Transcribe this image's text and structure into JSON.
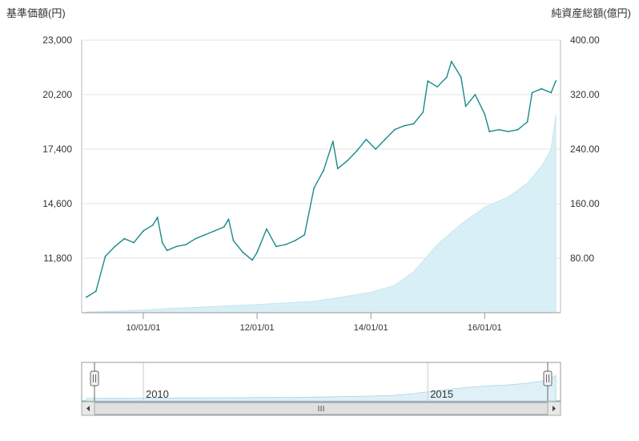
{
  "chart_data": {
    "type": "line",
    "left_axis_title": "基準価額(円)",
    "right_axis_title": "純資産総額(億円)",
    "left_axis": {
      "min": 9000,
      "max": 23000,
      "ticks": [
        "23,000",
        "20,200",
        "17,400",
        "14,600",
        "11,800"
      ]
    },
    "right_axis": {
      "min": 0,
      "max": 400,
      "ticks": [
        "400.00",
        "320.00",
        "240.00",
        "160.00",
        "80.00"
      ]
    },
    "x_ticks": [
      "10/01/01",
      "12/01/01",
      "14/01/01",
      "16/01/01"
    ],
    "x_range": [
      "2008-12",
      "2017-05"
    ],
    "grid": true,
    "series": [
      {
        "name": "",
        "axis": "left",
        "style": "line",
        "color": "#1a8a8a",
        "points": [
          [
            "2009-01",
            9800
          ],
          [
            "2009-03",
            10100
          ],
          [
            "2009-05",
            11900
          ],
          [
            "2009-07",
            12400
          ],
          [
            "2009-09",
            12800
          ],
          [
            "2009-11",
            12600
          ],
          [
            "2010-01",
            13200
          ],
          [
            "2010-03",
            13500
          ],
          [
            "2010-04",
            13900
          ],
          [
            "2010-05",
            12600
          ],
          [
            "2010-06",
            12200
          ],
          [
            "2010-08",
            12400
          ],
          [
            "2010-10",
            12500
          ],
          [
            "2010-12",
            12800
          ],
          [
            "2011-02",
            13000
          ],
          [
            "2011-04",
            13200
          ],
          [
            "2011-06",
            13400
          ],
          [
            "2011-07",
            13800
          ],
          [
            "2011-08",
            12700
          ],
          [
            "2011-10",
            12100
          ],
          [
            "2011-12",
            11700
          ],
          [
            "2012-01",
            12100
          ],
          [
            "2012-03",
            13300
          ],
          [
            "2012-05",
            12400
          ],
          [
            "2012-07",
            12500
          ],
          [
            "2012-09",
            12700
          ],
          [
            "2012-11",
            13000
          ],
          [
            "2013-01",
            15400
          ],
          [
            "2013-03",
            16300
          ],
          [
            "2013-05",
            17800
          ],
          [
            "2013-06",
            16400
          ],
          [
            "2013-08",
            16800
          ],
          [
            "2013-10",
            17300
          ],
          [
            "2013-12",
            17900
          ],
          [
            "2014-02",
            17400
          ],
          [
            "2014-04",
            17900
          ],
          [
            "2014-06",
            18400
          ],
          [
            "2014-08",
            18600
          ],
          [
            "2014-10",
            18700
          ],
          [
            "2014-12",
            19300
          ],
          [
            "2015-01",
            20900
          ],
          [
            "2015-03",
            20600
          ],
          [
            "2015-05",
            21100
          ],
          [
            "2015-06",
            21900
          ],
          [
            "2015-08",
            21100
          ],
          [
            "2015-09",
            19600
          ],
          [
            "2015-11",
            20200
          ],
          [
            "2016-01",
            19200
          ],
          [
            "2016-02",
            18300
          ],
          [
            "2016-04",
            18400
          ],
          [
            "2016-06",
            18300
          ],
          [
            "2016-08",
            18400
          ],
          [
            "2016-10",
            18800
          ],
          [
            "2016-11",
            20300
          ],
          [
            "2017-01",
            20500
          ],
          [
            "2017-03",
            20300
          ],
          [
            "2017-04",
            20900
          ]
        ]
      },
      {
        "name": "",
        "axis": "right",
        "style": "area",
        "color": "#d9eff6",
        "points": [
          [
            "2009-01",
            1
          ],
          [
            "2009-06",
            2
          ],
          [
            "2010-01",
            4
          ],
          [
            "2010-06",
            6
          ],
          [
            "2011-01",
            8
          ],
          [
            "2011-06",
            10
          ],
          [
            "2012-01",
            12
          ],
          [
            "2012-06",
            14
          ],
          [
            "2013-01",
            17
          ],
          [
            "2013-06",
            22
          ],
          [
            "2014-01",
            30
          ],
          [
            "2014-06",
            40
          ],
          [
            "2014-10",
            60
          ],
          [
            "2015-03",
            100
          ],
          [
            "2015-08",
            130
          ],
          [
            "2016-01",
            155
          ],
          [
            "2016-06",
            170
          ],
          [
            "2016-10",
            190
          ],
          [
            "2017-01",
            215
          ],
          [
            "2017-03",
            240
          ],
          [
            "2017-04",
            290
          ]
        ]
      }
    ],
    "navigator": {
      "labels": [
        "2010",
        "2015"
      ]
    }
  }
}
